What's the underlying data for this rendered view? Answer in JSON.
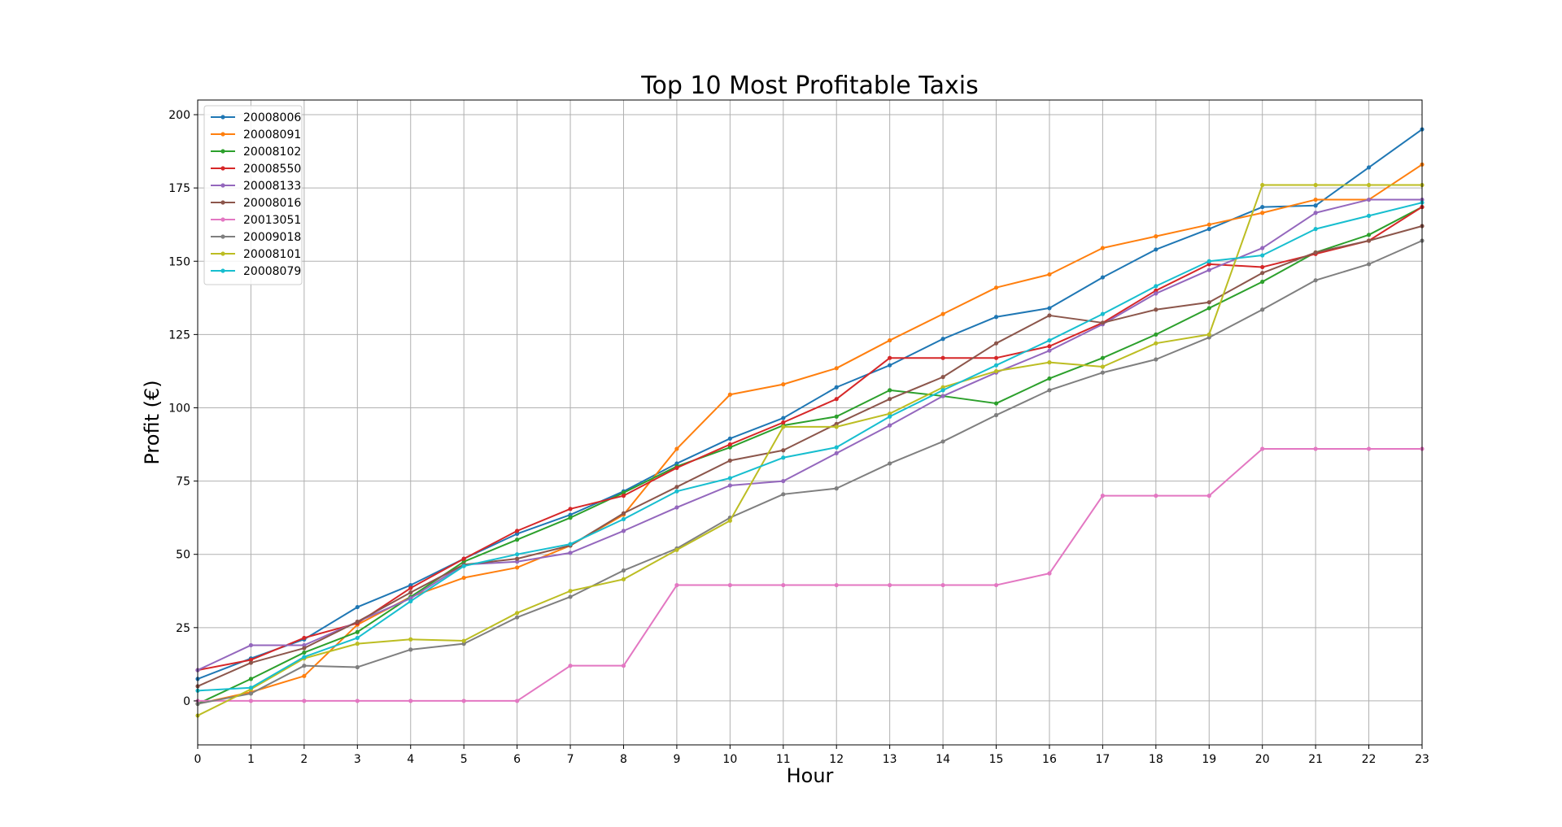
{
  "chart_data": {
    "type": "line",
    "title": "Top 10 Most Profitable Taxis",
    "xlabel": "Hour",
    "ylabel": "Profit (€)",
    "xlim": [
      0,
      23
    ],
    "ylim": [
      -15,
      205
    ],
    "xticks": [
      "0",
      "1",
      "2",
      "3",
      "4",
      "5",
      "6",
      "7",
      "8",
      "9",
      "10",
      "11",
      "12",
      "13",
      "14",
      "15",
      "16",
      "17",
      "18",
      "19",
      "20",
      "21",
      "22",
      "23"
    ],
    "yticks": [
      0,
      25,
      50,
      75,
      100,
      125,
      150,
      175,
      200
    ],
    "grid": true,
    "legend_position": "top-left",
    "x": [
      0,
      1,
      2,
      3,
      4,
      5,
      6,
      7,
      8,
      9,
      10,
      11,
      12,
      13,
      14,
      15,
      16,
      17,
      18,
      19,
      20,
      21,
      22,
      23
    ],
    "series": [
      {
        "name": "20008006",
        "color": "#1f77b4",
        "values": [
          7.5,
          14.5,
          21,
          32,
          39.5,
          48.5,
          57,
          63.5,
          71.5,
          81,
          89.5,
          96.5,
          107,
          114.5,
          123.5,
          131,
          134,
          144.5,
          154,
          161,
          168.5,
          169,
          182,
          195
        ]
      },
      {
        "name": "20008091",
        "color": "#ff7f0e",
        "values": [
          -1,
          3,
          8.5,
          26,
          35.5,
          42,
          45.5,
          53,
          63.5,
          86,
          104.5,
          108,
          113.5,
          123,
          132,
          141,
          145.5,
          154.5,
          158.5,
          162.5,
          166.5,
          171,
          171,
          183
        ]
      },
      {
        "name": "20008102",
        "color": "#2ca02c",
        "values": [
          -1,
          7.5,
          16.5,
          23.5,
          35.5,
          47.5,
          55,
          62.5,
          71,
          80,
          86.5,
          94,
          97,
          106,
          104,
          101.5,
          110,
          117,
          125,
          134,
          143,
          153,
          159,
          168.5
        ]
      },
      {
        "name": "20008550",
        "color": "#d62728",
        "values": [
          10.5,
          14,
          21.5,
          26.5,
          38.5,
          48.5,
          58,
          65.5,
          70,
          79.5,
          87.5,
          95,
          103,
          117,
          117,
          117,
          121,
          129,
          140,
          149,
          148,
          152.5,
          157,
          168.5
        ]
      },
      {
        "name": "20008133",
        "color": "#9467bd",
        "values": [
          10.5,
          19,
          19,
          27,
          35,
          46.5,
          47.5,
          50.5,
          58,
          66,
          73.5,
          75,
          84.5,
          94,
          104,
          112,
          119.5,
          128.5,
          139,
          147,
          154.5,
          166.5,
          171,
          171
        ]
      },
      {
        "name": "20008016",
        "color": "#8c564b",
        "values": [
          5,
          13,
          18,
          27,
          37,
          46.5,
          48.5,
          53,
          64,
          73,
          82,
          85.5,
          94.5,
          103,
          110.5,
          122,
          131.5,
          129,
          133.5,
          136,
          146,
          153,
          157,
          162
        ]
      },
      {
        "name": "20013051",
        "color": "#e377c2",
        "values": [
          0,
          0,
          0,
          0,
          0,
          0,
          0,
          12,
          12,
          39.5,
          39.5,
          39.5,
          39.5,
          39.5,
          39.5,
          39.5,
          43.5,
          70,
          70,
          70,
          86,
          86,
          86,
          86
        ]
      },
      {
        "name": "20009018",
        "color": "#7f7f7f",
        "values": [
          -1,
          2.5,
          12,
          11.5,
          17.5,
          19.5,
          28.5,
          35.5,
          44.5,
          52,
          62.5,
          70.5,
          72.5,
          81,
          88.5,
          97.5,
          106,
          112,
          116.5,
          124,
          133.5,
          143.5,
          149,
          157
        ]
      },
      {
        "name": "20008101",
        "color": "#bcbd22",
        "values": [
          -5,
          4,
          14.5,
          19.5,
          21,
          20.5,
          30,
          37.5,
          41.5,
          51.5,
          61.5,
          93.5,
          93.5,
          98,
          107,
          112.5,
          115.5,
          114,
          122,
          125,
          176,
          176,
          176,
          176
        ]
      },
      {
        "name": "20008079",
        "color": "#17becf",
        "values": [
          3.5,
          4.5,
          15,
          21.5,
          34,
          46,
          50,
          53.5,
          62,
          71.5,
          76,
          83,
          86.5,
          97,
          106,
          114.5,
          123,
          132,
          141.5,
          150,
          152,
          161,
          165.5,
          170
        ]
      }
    ]
  }
}
